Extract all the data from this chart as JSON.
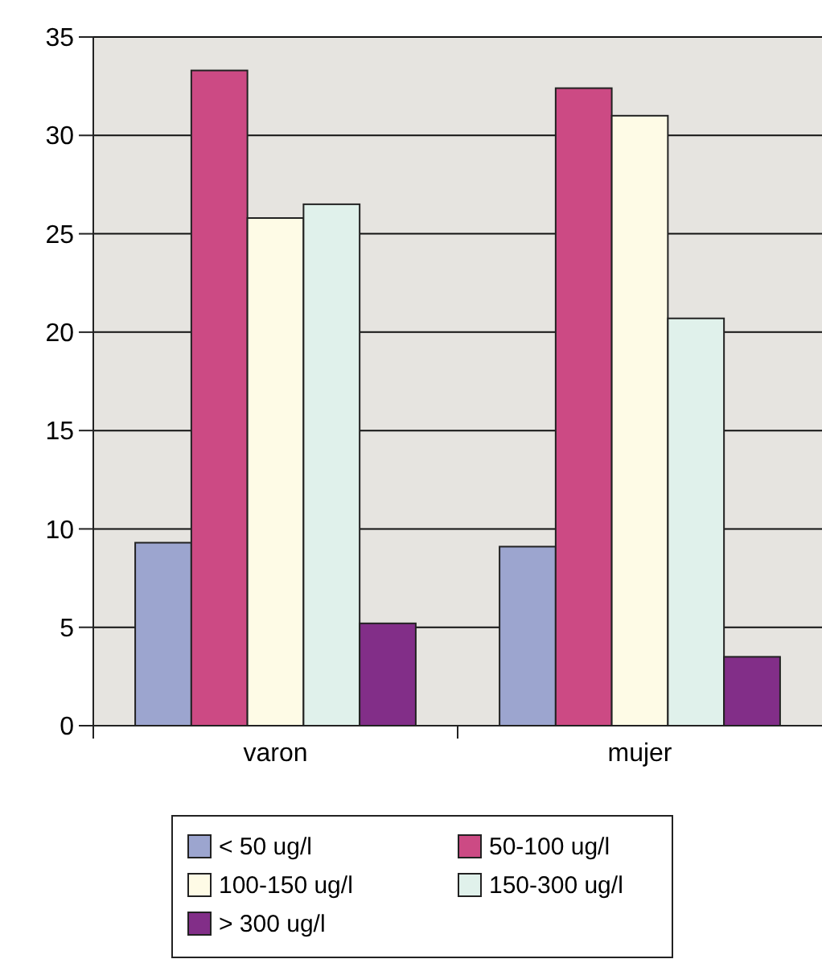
{
  "chart_data": {
    "type": "bar",
    "categories": [
      "varon",
      "mujer"
    ],
    "series": [
      {
        "name": "< 50 ug/l",
        "color": "#9ca5cf",
        "values": [
          9.3,
          9.1
        ]
      },
      {
        "name": "50-100 ug/l",
        "color": "#cc4a84",
        "values": [
          33.3,
          32.4
        ]
      },
      {
        "name": "100-150 ug/l",
        "color": "#fefbe6",
        "values": [
          25.8,
          31.0
        ]
      },
      {
        "name": "150-300 ug/l",
        "color": "#e0f1eb",
        "values": [
          26.5,
          20.7
        ]
      },
      {
        "name": "> 300 ug/l",
        "color": "#822e88",
        "values": [
          5.2,
          3.5
        ]
      }
    ],
    "ylim": [
      0,
      35
    ],
    "yticks": [
      0,
      5,
      10,
      15,
      20,
      25,
      30,
      35
    ],
    "grid": "y",
    "legend": "bottom"
  }
}
